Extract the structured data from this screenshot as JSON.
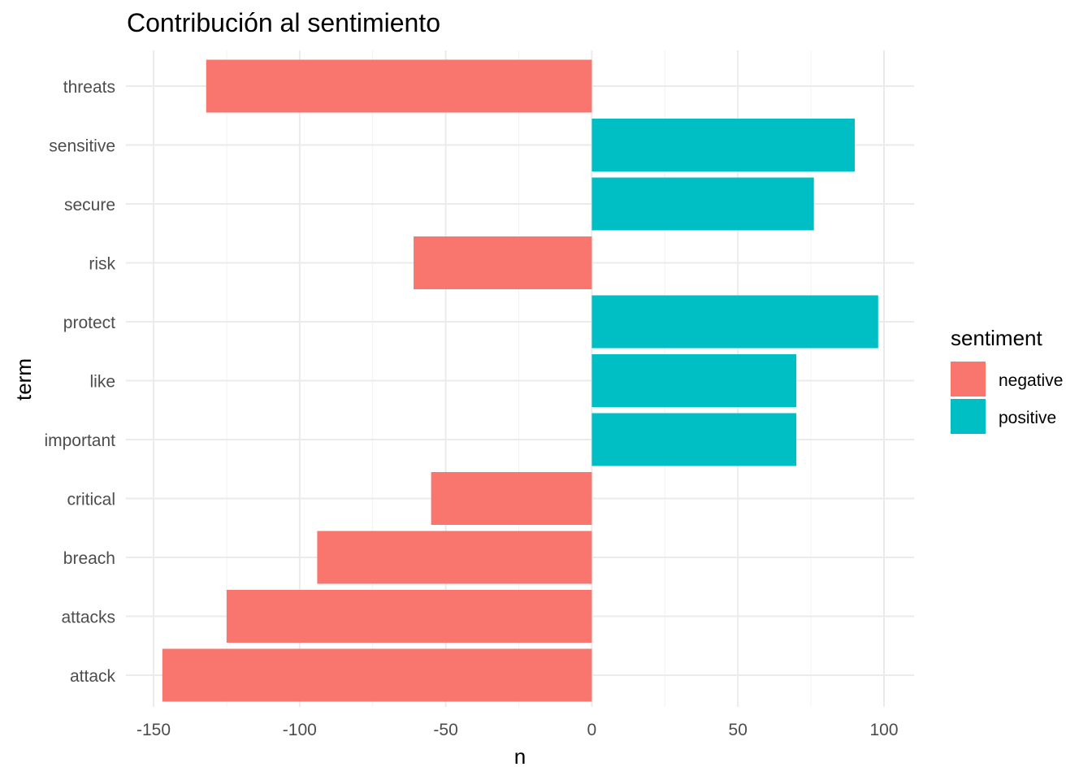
{
  "chart_data": {
    "type": "bar",
    "orientation": "horizontal",
    "title": "Contribución al sentimiento",
    "xlabel": "n",
    "ylabel": "term",
    "xlim": [
      -150,
      100
    ],
    "xticks": [
      -150,
      -100,
      -50,
      0,
      50,
      100
    ],
    "xtick_labels": [
      "-150",
      "-100",
      "-50",
      "0",
      "50",
      "100"
    ],
    "grid": true,
    "categories": [
      "attack",
      "attacks",
      "breach",
      "critical",
      "important",
      "like",
      "protect",
      "risk",
      "secure",
      "sensitive",
      "threats"
    ],
    "bars": [
      {
        "term": "attack",
        "value": -147,
        "sentiment": "negative"
      },
      {
        "term": "attacks",
        "value": -125,
        "sentiment": "negative"
      },
      {
        "term": "breach",
        "value": -94,
        "sentiment": "negative"
      },
      {
        "term": "critical",
        "value": -55,
        "sentiment": "negative"
      },
      {
        "term": "important",
        "value": 70,
        "sentiment": "positive"
      },
      {
        "term": "like",
        "value": 70,
        "sentiment": "positive"
      },
      {
        "term": "protect",
        "value": 98,
        "sentiment": "positive"
      },
      {
        "term": "risk",
        "value": -61,
        "sentiment": "negative"
      },
      {
        "term": "secure",
        "value": 76,
        "sentiment": "positive"
      },
      {
        "term": "sensitive",
        "value": 90,
        "sentiment": "positive"
      },
      {
        "term": "threats",
        "value": -132,
        "sentiment": "negative"
      }
    ],
    "legend": {
      "title": "sentiment",
      "position": "right",
      "items": [
        {
          "label": "negative",
          "color": "#F8766D"
        },
        {
          "label": "positive",
          "color": "#00BFC4"
        }
      ]
    }
  }
}
